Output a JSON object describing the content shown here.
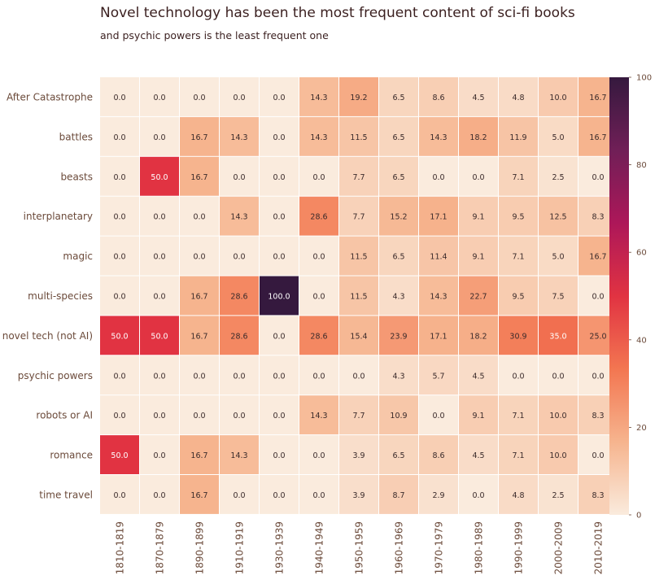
{
  "chart_data": {
    "type": "heatmap",
    "title": "Novel technology has been the most frequent content of sci-fi books",
    "subtitle": "and psychic powers is the least frequent one",
    "rows": [
      "After Catastrophe",
      "battles",
      "beasts",
      "interplanetary",
      "magic",
      "multi-species",
      "novel tech (not AI)",
      "psychic powers",
      "robots or AI",
      "romance",
      "time travel"
    ],
    "columns": [
      "1810-1819",
      "1870-1879",
      "1890-1899",
      "1910-1919",
      "1930-1939",
      "1940-1949",
      "1950-1959",
      "1960-1969",
      "1970-1979",
      "1980-1989",
      "1990-1999",
      "2000-2009",
      "2010-2019"
    ],
    "values": [
      [
        0.0,
        0.0,
        0.0,
        0.0,
        0.0,
        14.3,
        19.2,
        6.5,
        8.6,
        4.5,
        4.8,
        10.0,
        16.7
      ],
      [
        0.0,
        0.0,
        16.7,
        14.3,
        0.0,
        14.3,
        11.5,
        6.5,
        14.3,
        18.2,
        11.9,
        5.0,
        16.7
      ],
      [
        0.0,
        50.0,
        16.7,
        0.0,
        0.0,
        0.0,
        7.7,
        6.5,
        0.0,
        0.0,
        7.1,
        2.5,
        0.0
      ],
      [
        0.0,
        0.0,
        0.0,
        14.3,
        0.0,
        28.6,
        7.7,
        15.2,
        17.1,
        9.1,
        9.5,
        12.5,
        8.3
      ],
      [
        0.0,
        0.0,
        0.0,
        0.0,
        0.0,
        0.0,
        11.5,
        6.5,
        11.4,
        9.1,
        7.1,
        5.0,
        16.7
      ],
      [
        0.0,
        0.0,
        16.7,
        28.6,
        100.0,
        0.0,
        11.5,
        4.3,
        14.3,
        22.7,
        9.5,
        7.5,
        0.0
      ],
      [
        50.0,
        50.0,
        16.7,
        28.6,
        0.0,
        28.6,
        15.4,
        23.9,
        17.1,
        18.2,
        30.9,
        35.0,
        25.0
      ],
      [
        0.0,
        0.0,
        0.0,
        0.0,
        0.0,
        0.0,
        0.0,
        4.3,
        5.7,
        4.5,
        0.0,
        0.0,
        0.0
      ],
      [
        0.0,
        0.0,
        0.0,
        0.0,
        0.0,
        14.3,
        7.7,
        10.9,
        0.0,
        9.1,
        7.1,
        10.0,
        8.3
      ],
      [
        50.0,
        0.0,
        16.7,
        14.3,
        0.0,
        0.0,
        3.9,
        6.5,
        8.6,
        4.5,
        7.1,
        10.0,
        0.0
      ],
      [
        0.0,
        0.0,
        16.7,
        0.0,
        0.0,
        0.0,
        3.9,
        8.7,
        2.9,
        0.0,
        4.8,
        2.5,
        8.3
      ]
    ],
    "colorbar": {
      "min": 0,
      "max": 100,
      "ticks": [
        0,
        20,
        40,
        60,
        80,
        100
      ]
    },
    "colormap_stops": [
      "#faebdd",
      "#f6b48e",
      "#f37651",
      "#e13342",
      "#ad1759",
      "#701f57",
      "#35193e"
    ]
  }
}
